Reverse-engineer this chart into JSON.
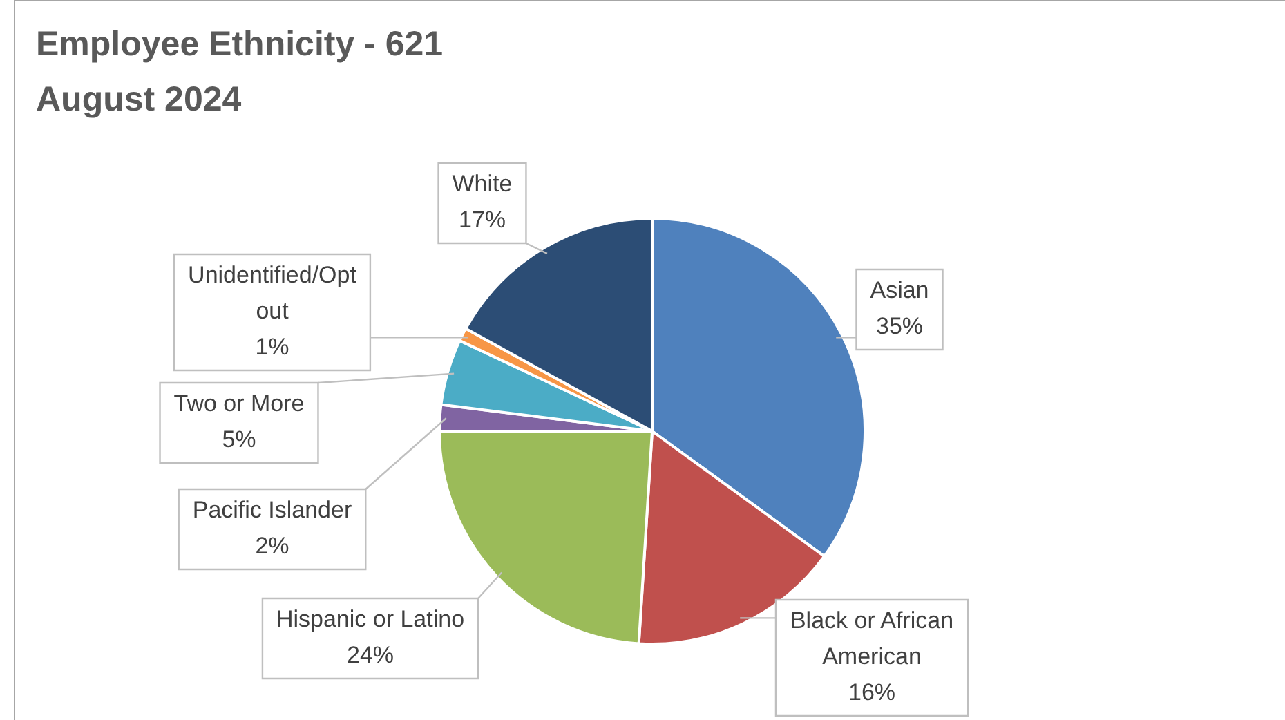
{
  "chart_data": {
    "type": "pie",
    "title": "Employee Ethnicity - 621",
    "subtitle": "August 2024",
    "categories": [
      "Asian",
      "Black or African American",
      "Hispanic or Latino",
      "Pacific Islander",
      "Two or More",
      "Unidentified/Opt out",
      "White"
    ],
    "values": [
      35,
      16,
      24,
      2,
      5,
      1,
      17
    ],
    "value_labels": [
      "35%",
      "16%",
      "24%",
      "2%",
      "5%",
      "1%",
      "17%"
    ],
    "colors": [
      "#4f81bd",
      "#c0504d",
      "#9bbb59",
      "#8064a2",
      "#4bacc6",
      "#f79646",
      "#2c4d75"
    ],
    "legend": false
  }
}
